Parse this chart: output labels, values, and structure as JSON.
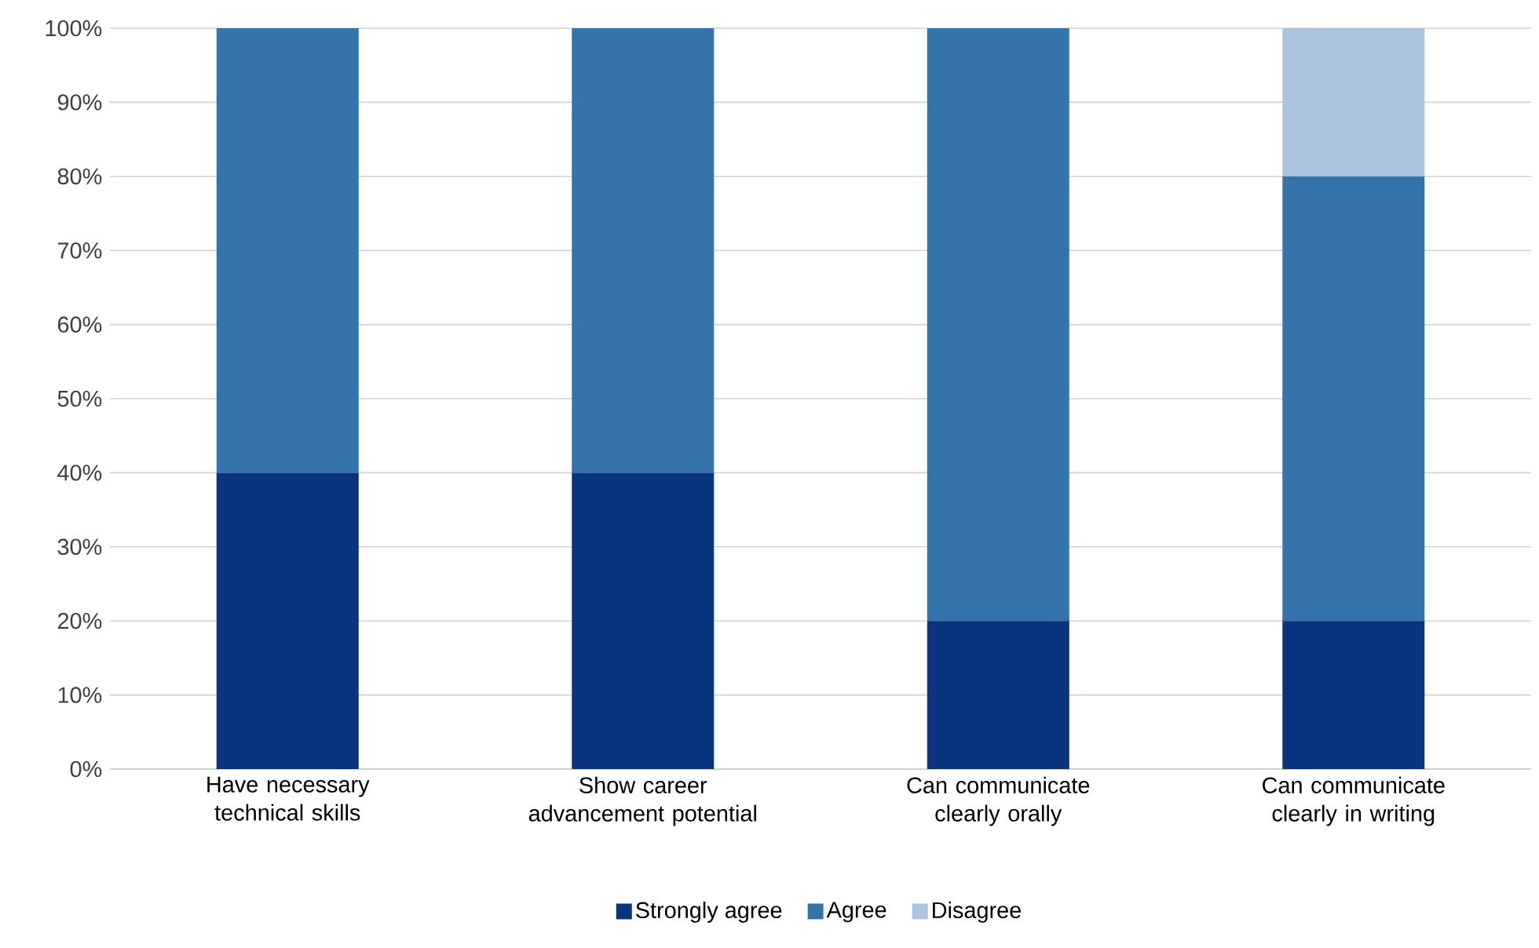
{
  "chart_data": {
    "type": "bar",
    "stacked": true,
    "categories": [
      "Have necessary technical skills",
      "Show career advancement potential",
      "Can communicate clearly orally",
      "Can communicate clearly in writing"
    ],
    "series": [
      {
        "name": "Strongly agree",
        "color": "#0b347e",
        "values": [
          40,
          40,
          20,
          20
        ]
      },
      {
        "name": "Agree",
        "color": "#3474aa",
        "values": [
          60,
          60,
          80,
          60
        ]
      },
      {
        "name": "Disagree",
        "color": "#abc5de",
        "values": [
          0,
          0,
          0,
          20
        ]
      }
    ],
    "ylim": [
      0,
      100
    ],
    "yticks": [
      {
        "value": 0,
        "label": "0%"
      },
      {
        "value": 10,
        "label": "10%"
      },
      {
        "value": 20,
        "label": "20%"
      },
      {
        "value": 30,
        "label": "30%"
      },
      {
        "value": 40,
        "label": "40%"
      },
      {
        "value": 50,
        "label": "50%"
      },
      {
        "value": 60,
        "label": "60%"
      },
      {
        "value": 70,
        "label": "70%"
      },
      {
        "value": 80,
        "label": "80%"
      },
      {
        "value": 90,
        "label": "90%"
      },
      {
        "value": 100,
        "label": "100%"
      }
    ],
    "grid": "y",
    "legend": "bottom"
  }
}
